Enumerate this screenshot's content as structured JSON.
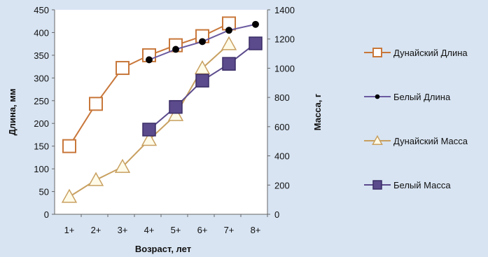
{
  "chart_data": {
    "type": "line",
    "categories": [
      "1+",
      "2+",
      "3+",
      "4+",
      "5+",
      "6+",
      "7+",
      "8+"
    ],
    "xlabel": "Возраст, лет",
    "ylabel_left": "Длина, мм",
    "ylabel_right": "Масса, г",
    "ylim_left": [
      0,
      450
    ],
    "ylim_right": [
      0,
      1400
    ],
    "yticks_left": [
      0,
      50,
      100,
      150,
      200,
      250,
      300,
      350,
      400,
      450
    ],
    "yticks_right": [
      0,
      200,
      400,
      600,
      800,
      1000,
      1200,
      1400
    ],
    "grid": false,
    "legend_position": "right",
    "series": [
      {
        "name": "Дунайский Длина",
        "axis": "left",
        "values": [
          150,
          243,
          322,
          350,
          372,
          392,
          420,
          null
        ],
        "color": "#c8773a",
        "marker": "square-open"
      },
      {
        "name": "Белый Длина",
        "axis": "left",
        "values": [
          null,
          null,
          null,
          340,
          363,
          380,
          405,
          418
        ],
        "color": "#6a5aa0",
        "marker": "circle-black"
      },
      {
        "name": "Дунайский Масса",
        "axis": "right",
        "values": [
          120,
          235,
          325,
          510,
          680,
          1000,
          1165,
          null
        ],
        "color": "#c8a060",
        "marker": "triangle-open"
      },
      {
        "name": "Белый Масса",
        "axis": "right",
        "values": [
          null,
          null,
          null,
          580,
          735,
          915,
          1030,
          1170
        ],
        "color": "#5b4a8c",
        "marker": "square-filled"
      }
    ]
  }
}
